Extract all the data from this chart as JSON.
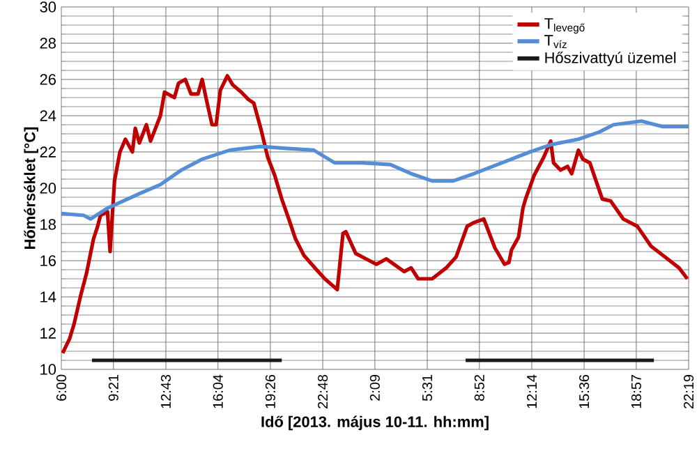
{
  "chart_data": {
    "type": "line",
    "xlabel": "Idő [2013. május 10-11. hh:mm]",
    "ylabel": "Hőmérséklet [°C]",
    "xlim": [
      "2013-05-10T06:00",
      "2013-05-11T22:19"
    ],
    "ylim": [
      10,
      30
    ],
    "xticks": [
      {
        "value": "2013-05-10T06:00",
        "label": "6:00"
      },
      {
        "value": "2013-05-10T09:21",
        "label": "9:21"
      },
      {
        "value": "2013-05-10T12:43",
        "label": "12:43"
      },
      {
        "value": "2013-05-10T16:04",
        "label": "16:04"
      },
      {
        "value": "2013-05-10T19:26",
        "label": "19:26"
      },
      {
        "value": "2013-05-10T22:48",
        "label": "22:48"
      },
      {
        "value": "2013-05-11T02:09",
        "label": "2:09"
      },
      {
        "value": "2013-05-11T05:31",
        "label": "5:31"
      },
      {
        "value": "2013-05-11T08:52",
        "label": "8:52"
      },
      {
        "value": "2013-05-11T12:14",
        "label": "12:14"
      },
      {
        "value": "2013-05-11T15:36",
        "label": "15:36"
      },
      {
        "value": "2013-05-11T18:57",
        "label": "18:57"
      },
      {
        "value": "2013-05-11T22:19",
        "label": "22:19"
      }
    ],
    "yticks": [
      10,
      12,
      14,
      16,
      18,
      20,
      22,
      24,
      26,
      28,
      30
    ],
    "grid": true,
    "legend": "top right",
    "marker": "none",
    "line_style": "solid",
    "series": [
      {
        "name": "T$_{levegő}$",
        "color": "#c00000",
        "x": [
          "2013-05-10T06:05",
          "2013-05-10T06:32",
          "2013-05-10T06:49",
          "2013-05-10T07:15",
          "2013-05-10T07:37",
          "2013-05-10T08:04",
          "2013-05-10T08:20",
          "2013-05-10T08:31",
          "2013-05-10T08:58",
          "2013-05-10T09:08",
          "2013-05-10T09:25",
          "2013-05-10T09:46",
          "2013-05-10T10:07",
          "2013-05-10T10:34",
          "2013-05-10T10:45",
          "2013-05-10T11:01",
          "2013-05-10T11:28",
          "2013-05-10T11:44",
          "2013-05-10T12:22",
          "2013-05-10T12:38",
          "2013-05-10T13:16",
          "2013-05-10T13:32",
          "2013-05-10T13:58",
          "2013-05-10T14:20",
          "2013-05-10T14:47",
          "2013-05-10T15:03",
          "2013-05-10T15:19",
          "2013-05-10T15:41",
          "2013-05-10T15:57",
          "2013-05-10T16:13",
          "2013-05-10T16:40",
          "2013-05-10T17:01",
          "2013-05-10T17:34",
          "2013-05-10T18:01",
          "2013-05-10T18:22",
          "2013-05-10T18:49",
          "2013-05-10T19:16",
          "2013-05-10T19:43",
          "2013-05-10T20:10",
          "2013-05-10T20:37",
          "2013-05-10T21:03",
          "2013-05-10T21:35",
          "2013-05-10T22:24",
          "2013-05-10T22:56",
          "2013-05-10T23:44",
          "2013-05-11T00:06",
          "2013-05-11T00:17",
          "2013-05-11T00:55",
          "2013-05-11T01:21",
          "2013-05-11T02:15",
          "2013-05-11T02:53",
          "2013-05-11T04:02",
          "2013-05-11T04:29",
          "2013-05-11T04:56",
          "2013-05-11T05:50",
          "2013-05-11T06:44",
          "2013-05-11T07:22",
          "2013-05-11T08:05",
          "2013-05-11T08:31",
          "2013-05-11T09:09",
          "2013-05-11T09:52",
          "2013-05-11T10:29",
          "2013-05-11T10:46",
          "2013-05-11T10:56",
          "2013-05-11T11:23",
          "2013-05-11T11:40",
          "2013-05-11T11:50",
          "2013-05-11T12:23",
          "2013-05-11T13:00",
          "2013-05-11T13:27",
          "2013-05-11T13:38",
          "2013-05-11T14:05",
          "2013-05-11T14:32",
          "2013-05-11T14:48",
          "2013-05-11T15:14",
          "2013-05-11T15:31",
          "2013-05-11T15:58",
          "2013-05-11T16:46",
          "2013-05-11T17:18",
          "2013-05-11T18:07",
          "2013-05-11T19:01",
          "2013-05-11T19:54",
          "2013-05-11T20:48",
          "2013-05-11T21:42",
          "2013-05-11T22:14"
        ],
        "values": [
          10.9,
          11.7,
          12.5,
          14.1,
          15.3,
          17.2,
          17.9,
          18.5,
          18.7,
          16.5,
          20.4,
          22.0,
          22.7,
          22.0,
          23.3,
          22.5,
          23.5,
          22.6,
          24.0,
          25.3,
          25.0,
          25.8,
          26.0,
          25.2,
          25.2,
          26.0,
          24.9,
          23.5,
          23.5,
          25.4,
          26.2,
          25.7,
          25.3,
          24.9,
          24.7,
          23.3,
          21.7,
          20.7,
          19.4,
          18.3,
          17.2,
          16.3,
          15.5,
          15.0,
          14.4,
          17.5,
          17.6,
          16.4,
          16.2,
          15.8,
          16.1,
          15.4,
          15.6,
          15.0,
          15.0,
          15.6,
          16.2,
          17.9,
          18.1,
          18.3,
          16.7,
          15.8,
          15.9,
          16.6,
          17.3,
          18.9,
          19.4,
          20.7,
          21.7,
          22.6,
          21.4,
          21.0,
          21.2,
          20.8,
          22.1,
          21.6,
          21.4,
          19.4,
          19.3,
          18.3,
          17.9,
          16.8,
          16.2,
          15.6,
          15.0
        ]
      },
      {
        "name": "T$_{víz}$",
        "color": "#558ed5",
        "x": [
          "2013-05-10T06:00",
          "2013-05-10T07:26",
          "2013-05-10T07:53",
          "2013-05-10T08:58",
          "2013-05-10T11:01",
          "2013-05-10T12:22",
          "2013-05-10T13:43",
          "2013-05-10T15:03",
          "2013-05-10T16:50",
          "2013-05-10T18:49",
          "2013-05-10T20:26",
          "2013-05-10T22:13",
          "2013-05-10T23:34",
          "2013-05-11T01:21",
          "2013-05-11T03:09",
          "2013-05-11T04:29",
          "2013-05-11T05:50",
          "2013-05-11T07:11",
          "2013-05-11T08:31",
          "2013-05-11T10:19",
          "2013-05-11T12:07",
          "2013-05-11T13:27",
          "2013-05-11T15:14",
          "2013-05-11T16:35",
          "2013-05-11T17:29",
          "2013-05-11T19:17",
          "2013-05-11T20:37",
          "2013-05-11T22:19"
        ],
        "values": [
          18.6,
          18.5,
          18.3,
          18.9,
          19.7,
          20.2,
          21.0,
          21.6,
          22.1,
          22.3,
          22.2,
          22.1,
          21.4,
          21.4,
          21.3,
          20.8,
          20.4,
          20.4,
          20.8,
          21.4,
          22.0,
          22.4,
          22.7,
          23.1,
          23.5,
          23.7,
          23.4,
          23.4
        ]
      },
      {
        "name": "Hőszivattyú üzemel",
        "color": "#1a1a1a",
        "x": [
          "2013-05-10T07:58",
          "2013-05-10T20:10",
          "2013-05-11T02:00",
          "2013-05-11T07:59",
          "2013-05-11T20:05"
        ],
        "values": [
          10.5,
          10.5,
          null,
          10.5,
          10.5
        ]
      }
    ]
  }
}
